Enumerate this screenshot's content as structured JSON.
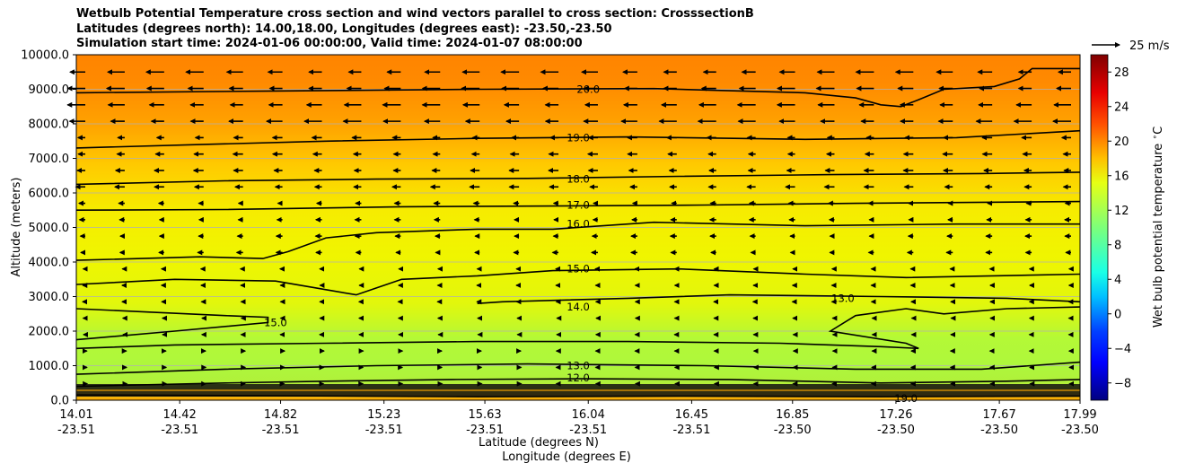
{
  "title": {
    "line1": "Wetbulb Potential Temperature cross section and wind vectors parallel to cross section: CrosssectionB",
    "line2": "Latitudes (degrees north): 14.00,18.00, Longitudes (degrees east): -23.50,-23.50",
    "line3": "Simulation start time: 2024-01-06 00:00:00, Valid time: 2024-01-07 08:00:00"
  },
  "chart_data": {
    "type": "contour",
    "ylabel": "Altitude (meters)",
    "xlabel_1": "Latitude (degrees N)",
    "xlabel_2": "Longitude (degrees E)",
    "colorbar_label": "Wet bulb potential temperature $^\\circ$C",
    "colorbar_ticks": [
      "−8",
      "−4",
      "0",
      "4",
      "8",
      "12",
      "16",
      "20",
      "24",
      "28"
    ],
    "colorbar_range": [
      -10,
      30
    ],
    "quiver_key": "25 m/s",
    "ylim": [
      0,
      10000
    ],
    "yticks": [
      "0.0",
      "1000.0",
      "2000.0",
      "3000.0",
      "4000.0",
      "5000.0",
      "6000.0",
      "7000.0",
      "8000.0",
      "9000.0",
      "10000.0"
    ],
    "xticks": [
      {
        "lat": "14.01",
        "lon": "-23.51",
        "v": 14.01
      },
      {
        "lat": "14.42",
        "lon": "-23.51",
        "v": 14.42
      },
      {
        "lat": "14.82",
        "lon": "-23.51",
        "v": 14.82
      },
      {
        "lat": "15.23",
        "lon": "-23.51",
        "v": 15.23
      },
      {
        "lat": "15.63",
        "lon": "-23.51",
        "v": 15.63
      },
      {
        "lat": "16.04",
        "lon": "-23.51",
        "v": 16.04
      },
      {
        "lat": "16.45",
        "lon": "-23.51",
        "v": 16.45
      },
      {
        "lat": "16.85",
        "lon": "-23.50",
        "v": 16.85
      },
      {
        "lat": "17.26",
        "lon": "-23.50",
        "v": 17.26
      },
      {
        "lat": "17.67",
        "lon": "-23.50",
        "v": 17.67
      },
      {
        "lat": "17.99",
        "lon": "-23.50",
        "v": 17.99
      }
    ],
    "xlim": [
      14.01,
      17.99
    ],
    "contours": [
      {
        "level": "20.0",
        "label_at": [
          16.04,
          9000
        ],
        "points": [
          [
            14.01,
            8900
          ],
          [
            14.8,
            8950
          ],
          [
            15.6,
            9000
          ],
          [
            16.3,
            9020
          ],
          [
            16.9,
            8900
          ],
          [
            17.1,
            8750
          ],
          [
            17.2,
            8550
          ],
          [
            17.28,
            8500
          ],
          [
            17.35,
            8700
          ],
          [
            17.45,
            9000
          ],
          [
            17.65,
            9080
          ],
          [
            17.75,
            9300
          ],
          [
            17.8,
            9600
          ],
          [
            17.99,
            9600
          ]
        ]
      },
      {
        "level": "19.0",
        "label_at": [
          16.0,
          7600
        ],
        "points": [
          [
            14.01,
            7300
          ],
          [
            14.5,
            7400
          ],
          [
            15.0,
            7500
          ],
          [
            15.6,
            7580
          ],
          [
            16.2,
            7620
          ],
          [
            16.9,
            7550
          ],
          [
            17.5,
            7600
          ],
          [
            17.99,
            7800
          ]
        ]
      },
      {
        "level": "18.0",
        "label_at": [
          16.0,
          6400
        ],
        "points": [
          [
            14.01,
            6250
          ],
          [
            14.6,
            6350
          ],
          [
            15.2,
            6400
          ],
          [
            15.8,
            6420
          ],
          [
            16.4,
            6480
          ],
          [
            17.0,
            6530
          ],
          [
            17.6,
            6560
          ],
          [
            17.99,
            6600
          ]
        ]
      },
      {
        "level": "17.0",
        "label_at": [
          16.0,
          5650
        ],
        "points": [
          [
            14.01,
            5500
          ],
          [
            14.6,
            5520
          ],
          [
            15.3,
            5600
          ],
          [
            15.9,
            5620
          ],
          [
            16.5,
            5650
          ],
          [
            17.1,
            5700
          ],
          [
            17.99,
            5750
          ]
        ]
      },
      {
        "level": "16.0",
        "label_at": [
          16.0,
          5100
        ],
        "points": [
          [
            14.01,
            4050
          ],
          [
            14.5,
            4150
          ],
          [
            14.75,
            4100
          ],
          [
            14.85,
            4300
          ],
          [
            15.0,
            4700
          ],
          [
            15.2,
            4850
          ],
          [
            15.6,
            4950
          ],
          [
            15.9,
            4950
          ],
          [
            16.3,
            5150
          ],
          [
            16.9,
            5050
          ],
          [
            17.5,
            5100
          ],
          [
            17.99,
            5100
          ]
        ]
      },
      {
        "level": "15.0",
        "label_at": [
          16.0,
          3800
        ],
        "points": [
          [
            14.01,
            3350
          ],
          [
            14.4,
            3500
          ],
          [
            14.8,
            3450
          ],
          [
            15.0,
            3200
          ],
          [
            15.12,
            3050
          ],
          [
            15.2,
            3250
          ],
          [
            15.3,
            3500
          ],
          [
            15.6,
            3600
          ],
          [
            15.9,
            3750
          ],
          [
            16.4,
            3800
          ],
          [
            16.9,
            3650
          ],
          [
            17.3,
            3550
          ],
          [
            17.99,
            3650
          ]
        ]
      },
      {
        "level": "14.0",
        "label_at": [
          16.0,
          2700
        ],
        "points": [
          [
            15.6,
            2800
          ],
          [
            15.7,
            2850
          ],
          [
            16.2,
            2950
          ],
          [
            16.6,
            3050
          ],
          [
            17.2,
            3000
          ],
          [
            17.7,
            2950
          ],
          [
            17.99,
            2850
          ]
        ]
      },
      {
        "level": "15.0",
        "label_at": [
          14.8,
          2250
        ],
        "points": [
          [
            14.01,
            2650
          ],
          [
            14.3,
            2550
          ],
          [
            14.6,
            2450
          ],
          [
            14.77,
            2400
          ],
          [
            14.77,
            2250
          ],
          [
            14.4,
            2000
          ],
          [
            14.01,
            1750
          ]
        ]
      },
      {
        "level": "13.0",
        "label_at": [
          17.05,
          2950
        ],
        "points": [
          [
            14.01,
            1500
          ],
          [
            14.4,
            1600
          ],
          [
            15.0,
            1650
          ],
          [
            15.6,
            1700
          ],
          [
            16.2,
            1700
          ],
          [
            16.8,
            1650
          ],
          [
            17.2,
            1550
          ],
          [
            17.35,
            1500
          ],
          [
            17.3,
            1650
          ],
          [
            17.0,
            2000
          ],
          [
            17.1,
            2450
          ],
          [
            17.3,
            2650
          ],
          [
            17.45,
            2500
          ],
          [
            17.7,
            2650
          ],
          [
            17.99,
            2700
          ]
        ]
      },
      {
        "level": "13.0",
        "label_at": [
          16.0,
          1000
        ],
        "points": [
          [
            14.01,
            750
          ],
          [
            14.6,
            900
          ],
          [
            15.2,
            1000
          ],
          [
            15.8,
            1050
          ],
          [
            16.5,
            1000
          ],
          [
            17.1,
            900
          ],
          [
            17.6,
            900
          ],
          [
            17.99,
            1100
          ]
        ]
      },
      {
        "level": "12.0",
        "label_at": [
          16.0,
          650
        ],
        "points": [
          [
            14.01,
            400
          ],
          [
            14.6,
            500
          ],
          [
            15.0,
            550
          ],
          [
            15.5,
            600
          ],
          [
            16.0,
            620
          ],
          [
            16.6,
            600
          ],
          [
            17.2,
            500
          ],
          [
            17.7,
            550
          ],
          [
            17.99,
            600
          ]
        ]
      },
      {
        "level": "19.0",
        "label_at": [
          17.3,
          50
        ],
        "points": [
          [
            14.01,
            150
          ],
          [
            14.8,
            130
          ],
          [
            15.6,
            100
          ],
          [
            16.4,
            120
          ],
          [
            17.2,
            100
          ],
          [
            17.99,
            120
          ]
        ]
      }
    ]
  }
}
